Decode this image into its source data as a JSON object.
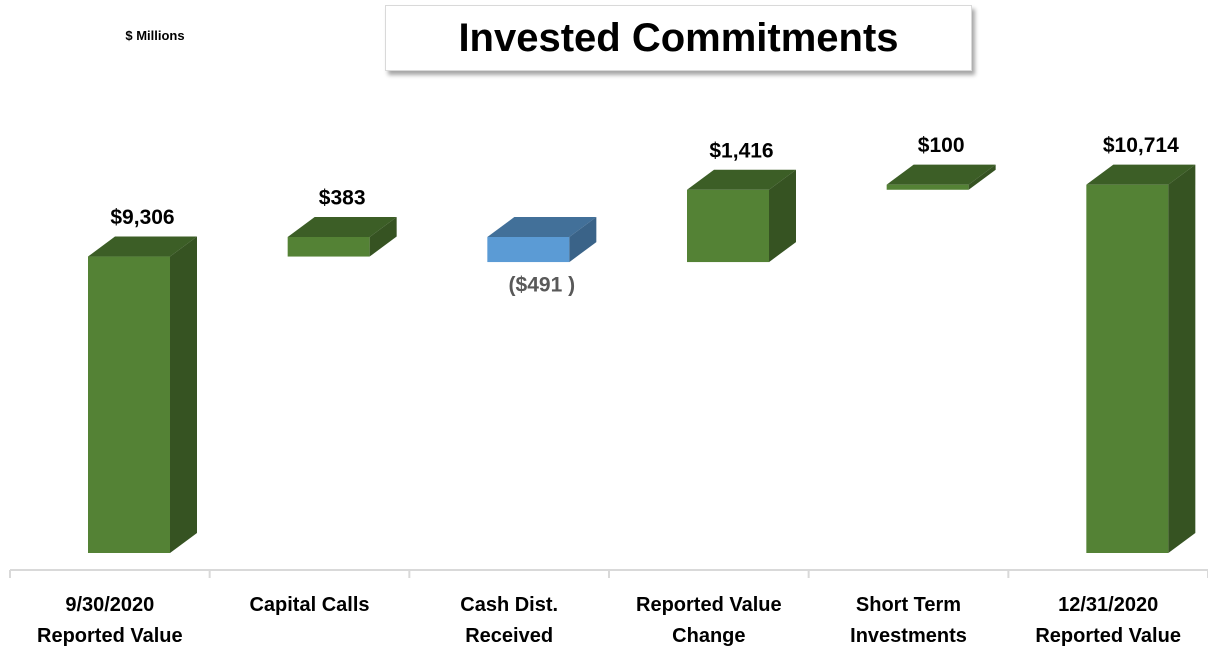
{
  "chart_data": {
    "type": "waterfall",
    "title": "Invested Commitments",
    "unit_label": "$ Millions",
    "categories": [
      "9/30/2020 Reported Value",
      "Capital Calls",
      "Cash Dist. Received",
      "Reported Value Change",
      "Short Term Investments",
      "12/31/2020 Reported Value"
    ],
    "values": [
      9306,
      383,
      -491,
      1416,
      100,
      10714
    ],
    "value_labels": [
      "$9,306",
      "$383",
      "($491 )",
      "$1,416",
      "$100",
      "$10,714"
    ],
    "colors": {
      "increase": "#548235",
      "decrease": "#5b9bd5"
    },
    "ylim": [
      3500,
      12000
    ]
  }
}
